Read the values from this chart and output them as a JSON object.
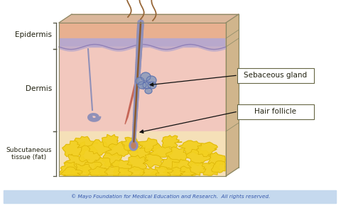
{
  "bg_color": "#ffffff",
  "footer_color": "#c5d9ee",
  "footer_text": "© Mayo Foundation for Medical Education and Research.  All rights reserved.",
  "footer_text_color": "#3355aa",
  "label_epidermis": "Epidermis",
  "label_dermis": "Dermis",
  "label_subcutaneous": "Subcutaneous\ntissue (fat)",
  "label_sebaceous": "Sebaceous gland",
  "label_hair": "Hair follicle",
  "skin_surface_color": "#d9a080",
  "epidermis_color": "#e8b090",
  "epidermis_purple_color": "#b8a8cc",
  "dermis_color": "#f2c8be",
  "dermis_lower_color": "#f0cdb0",
  "subcut_bg_color": "#f5e0b8",
  "fat_blob_color": "#f2d020",
  "fat_blob_edge": "#d4aa00",
  "right_face_color": "#c8a878",
  "top_face_color": "#d8b090",
  "box_edge_color": "#888866",
  "box_fill": "#ffffff",
  "box_label_edge": "#666644",
  "arrow_color": "#111111",
  "hair_color": "#8B5A2B",
  "hair_light_color": "#c09060",
  "follicle_outer_color": "#9090b8",
  "follicle_inner_color": "#b8a0c0",
  "sebaceous_color": "#8899bb",
  "sebaceous_edge": "#5566aa",
  "erector_color": "#c05848",
  "sweat_gland_color": "#9090b8",
  "nerve_color": "#d8c090",
  "bracket_color": "#555544",
  "label_color": "#222211"
}
